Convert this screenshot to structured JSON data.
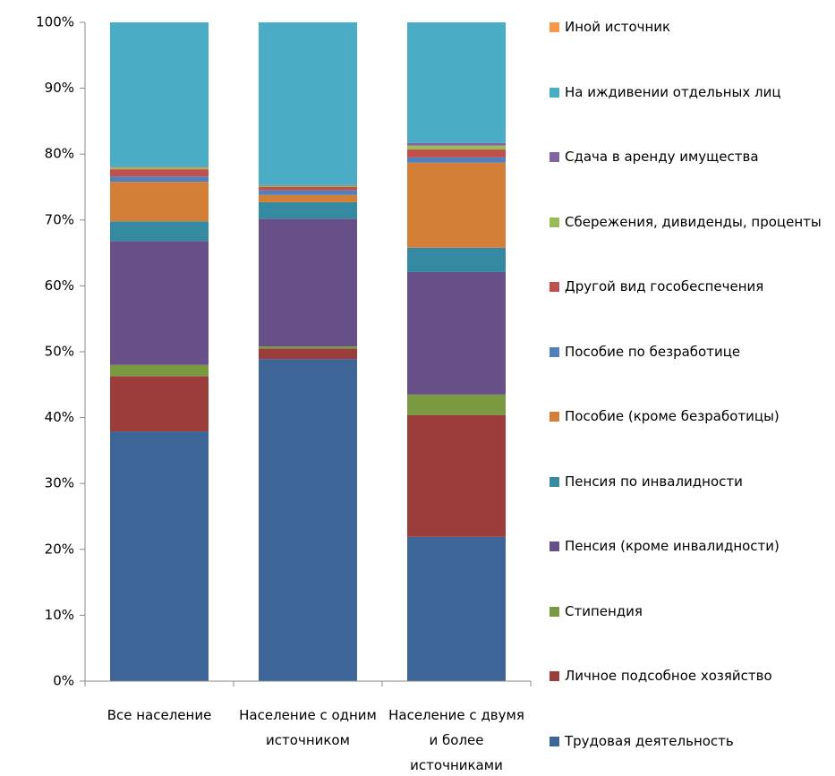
{
  "chart_data": {
    "type": "stacked_bar",
    "categories": [
      "Все население",
      "Население с одним источником",
      "Население с двумя и более источниками"
    ],
    "ylim": [
      0,
      100
    ],
    "yticks": [
      {
        "value": 0,
        "label": "0%"
      },
      {
        "value": 10,
        "label": "10%"
      },
      {
        "value": 20,
        "label": "20%"
      },
      {
        "value": 30,
        "label": "30%"
      },
      {
        "value": 40,
        "label": "40%"
      },
      {
        "value": 50,
        "label": "50%"
      },
      {
        "value": 60,
        "label": "60%"
      },
      {
        "value": 70,
        "label": "70%"
      },
      {
        "value": 80,
        "label": "80%"
      },
      {
        "value": 90,
        "label": "90%"
      },
      {
        "value": 100,
        "label": "100%"
      }
    ],
    "legend": "right",
    "series": [
      {
        "name": "Трудовая деятельность",
        "color": "#3d6597",
        "values": [
          37.9,
          48.9,
          21.9
        ]
      },
      {
        "name": "Личное подсобное хозяйство",
        "color": "#9b3d3a",
        "values": [
          8.4,
          1.6,
          18.5
        ]
      },
      {
        "name": "Стипендия",
        "color": "#7a9a42",
        "values": [
          1.7,
          0.3,
          3.1
        ]
      },
      {
        "name": "Пенсия (кроме инвалидности)",
        "color": "#674f88",
        "values": [
          18.8,
          19.4,
          18.6
        ]
      },
      {
        "name": "Пенсия по инвалидности",
        "color": "#358aa1",
        "values": [
          3.0,
          2.5,
          3.7
        ]
      },
      {
        "name": "Пособие (кроме безработицы)",
        "color": "#d47f37",
        "values": [
          6.0,
          1.1,
          12.9
        ]
      },
      {
        "name": "Пособие по безработице",
        "color": "#4f81bd",
        "values": [
          0.8,
          0.7,
          0.8
        ]
      },
      {
        "name": "Другой вид гособеспечения",
        "color": "#c0504d",
        "values": [
          1.1,
          0.5,
          1.2
        ]
      },
      {
        "name": "Сбережения, дивиденды, проценты",
        "color": "#9bbb59",
        "values": [
          0.3,
          0.2,
          0.6
        ]
      },
      {
        "name": "Сдача в аренду имущества",
        "color": "#8064a2",
        "values": [
          0.1,
          0.1,
          0.4
        ]
      },
      {
        "name": "На иждивении отдельных лиц",
        "color": "#4bacc6",
        "values": [
          21.9,
          24.7,
          18.3
        ]
      },
      {
        "name": "Иной источник",
        "color": "#f79646",
        "values": [
          0,
          0,
          0
        ]
      }
    ]
  }
}
